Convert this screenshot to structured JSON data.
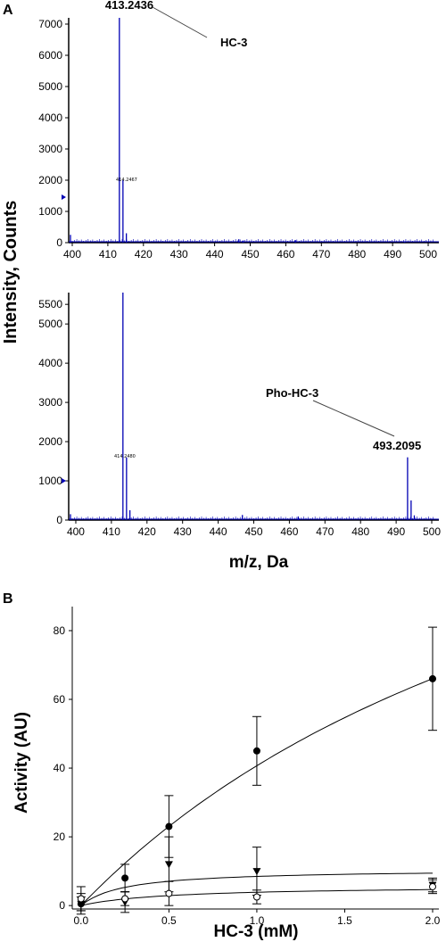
{
  "chart_data": [
    {
      "panel": "A",
      "type": "line",
      "xlabel": "m/z, Da",
      "ylabel": "Intensity, Counts",
      "xlim": [
        399,
        503
      ],
      "ylim": [
        0,
        7200
      ],
      "x_ticks": [
        400,
        410,
        420,
        430,
        440,
        450,
        460,
        470,
        480,
        490,
        500
      ],
      "y_ticks": [
        0,
        1000,
        2000,
        3000,
        4000,
        5000,
        6000,
        7000
      ],
      "series": [
        {
          "peaks": [
            {
              "mz": 399.5,
              "intensity": 250
            },
            {
              "mz": 413.24,
              "intensity": 7200
            },
            {
              "mz": 414.25,
              "intensity": 2000
            },
            {
              "mz": 415.2,
              "intensity": 300
            },
            {
              "mz": 446.8,
              "intensity": 110
            },
            {
              "mz": 448.0,
              "intensity": 70
            },
            {
              "mz": 462.7,
              "intensity": 80
            },
            {
              "mz": 493.4,
              "intensity": 40
            }
          ]
        }
      ],
      "annotations": [
        {
          "text": "413.2436",
          "mz": 413.24
        },
        {
          "text": "HC-3"
        },
        {
          "text": "414.2467",
          "mz": 414.25
        }
      ]
    },
    {
      "panel": "A",
      "type": "line",
      "xlabel": "m/z, Da",
      "ylabel": "Intensity, Counts",
      "xlim": [
        398,
        502
      ],
      "ylim": [
        0,
        5800
      ],
      "x_ticks": [
        400,
        410,
        420,
        430,
        440,
        450,
        460,
        470,
        480,
        490,
        500
      ],
      "y_ticks": [
        0,
        1000,
        2000,
        3000,
        4000,
        5000,
        5500
      ],
      "series": [
        {
          "peaks": [
            {
              "mz": 398.5,
              "intensity": 150
            },
            {
              "mz": 413.24,
              "intensity": 5800
            },
            {
              "mz": 414.25,
              "intensity": 1600
            },
            {
              "mz": 415.2,
              "intensity": 250
            },
            {
              "mz": 446.8,
              "intensity": 130
            },
            {
              "mz": 462.5,
              "intensity": 90
            },
            {
              "mz": 493.21,
              "intensity": 1600
            },
            {
              "mz": 494.2,
              "intensity": 500
            },
            {
              "mz": 495.1,
              "intensity": 120
            }
          ]
        }
      ],
      "annotations": [
        {
          "text": "Pho-HC-3"
        },
        {
          "text": "493.2095",
          "mz": 493.21
        },
        {
          "text": "414.2480",
          "mz": 414.25
        }
      ]
    },
    {
      "panel": "B",
      "type": "scatter",
      "xlabel": "HC-3 (mM)",
      "ylabel": "Activity (AU)",
      "xlim": [
        -0.05,
        2.0
      ],
      "ylim": [
        -1,
        87
      ],
      "x_ticks": [
        "0.0",
        "0.5",
        "1.0",
        "1.5",
        "2.0"
      ],
      "y_ticks": [
        "0",
        "20",
        "40",
        "60",
        "80"
      ],
      "series": [
        {
          "marker": "filled-circle",
          "x": [
            0.0,
            0.25,
            0.5,
            1.0,
            2.0
          ],
          "y": [
            0.5,
            8.0,
            23.0,
            45.0,
            66.0
          ],
          "err": [
            3.0,
            4.0,
            9.0,
            10.0,
            15.0
          ],
          "fit": {
            "vmax": 175,
            "km": 3.3
          }
        },
        {
          "marker": "filled-triangle-down",
          "x": [
            0.0,
            0.25,
            0.5,
            1.0,
            2.0
          ],
          "y": [
            0.5,
            1.0,
            12.0,
            10.0,
            6.0
          ],
          "err": [
            2.0,
            3.0,
            8.0,
            7.0,
            2.0
          ],
          "fit": {
            "vmax": 10.6,
            "km": 0.25
          }
        },
        {
          "marker": "open-circle",
          "x": [
            0.0,
            0.25,
            0.5,
            1.0,
            2.0
          ],
          "y": [
            2.0,
            2.0,
            3.5,
            2.5,
            5.5
          ],
          "err": [
            3.5,
            2.0,
            3.5,
            2.0,
            2.0
          ],
          "fit": {
            "vmax": 5.8,
            "km": 0.5
          }
        }
      ]
    }
  ],
  "panel_labels": {
    "a": "A",
    "b": "B"
  },
  "colors": {
    "spectrum": "#0000b4",
    "axes": "#000000"
  }
}
